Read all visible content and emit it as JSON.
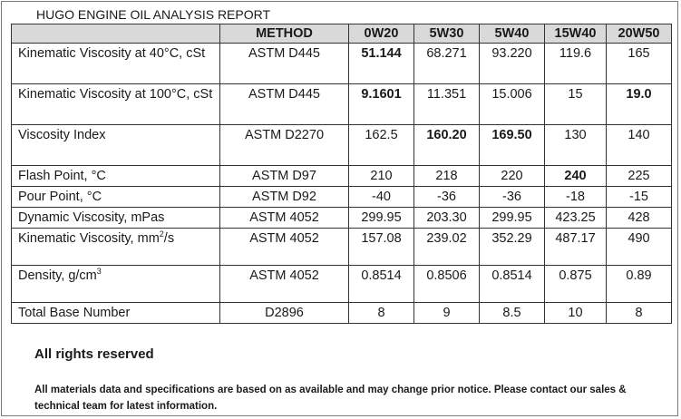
{
  "report": {
    "title": "HUGO ENGINE OIL ANALYSIS REPORT"
  },
  "table": {
    "headers": [
      "",
      "METHOD",
      "0W20",
      "5W30",
      "5W40",
      "15W40",
      "20W50"
    ],
    "rows": [
      {
        "property": "Kinematic Viscosity at 40°C, cSt",
        "method": "ASTM D445",
        "values": [
          "51.144",
          "68.271",
          "93.220",
          "119.6",
          "165"
        ]
      },
      {
        "property": "Kinematic Viscosity at 100°C, cSt",
        "method": "ASTM D445",
        "values": [
          "9.1601",
          "11.351",
          "15.006",
          "15",
          "19.0"
        ]
      },
      {
        "property": "Viscosity Index",
        "method": "ASTM D2270",
        "values": [
          "162.5",
          "160.20",
          "169.50",
          "130",
          "140"
        ]
      },
      {
        "property": "Flash Point, °C",
        "method": "ASTM D97",
        "values": [
          "210",
          "218",
          "220",
          "240",
          "225"
        ]
      },
      {
        "property": "Pour Point, °C",
        "method": "ASTM D92",
        "values": [
          "-40",
          "-36",
          "-36",
          "-18",
          "-15"
        ]
      },
      {
        "property": "Dynamic Viscosity, mPas",
        "method": "ASTM 4052",
        "values": [
          "299.95",
          "203.30",
          "299.95",
          "423.25",
          "428"
        ]
      },
      {
        "property": "Kinematic Viscosity, mm",
        "property_sup": "2",
        "property_suffix": "/s",
        "method": "ASTM 4052",
        "values": [
          "157.08",
          "239.02",
          "352.29",
          "487.17",
          "490"
        ]
      },
      {
        "property": "Density, g/cm",
        "property_sup": "3",
        "method": "ASTM 4052",
        "values": [
          "0.8514",
          "0.8506",
          "0.8514",
          "0.875",
          "0.89"
        ]
      },
      {
        "property": "Total Base Number",
        "method": "D2896",
        "values": [
          "8",
          "9",
          "8.5",
          "10",
          "8"
        ]
      }
    ]
  },
  "footer": {
    "heading": "All rights reserved",
    "note": "All materials data and specifications are based on as available and may change prior notice. Please contact our sales & technical team for latest information."
  }
}
